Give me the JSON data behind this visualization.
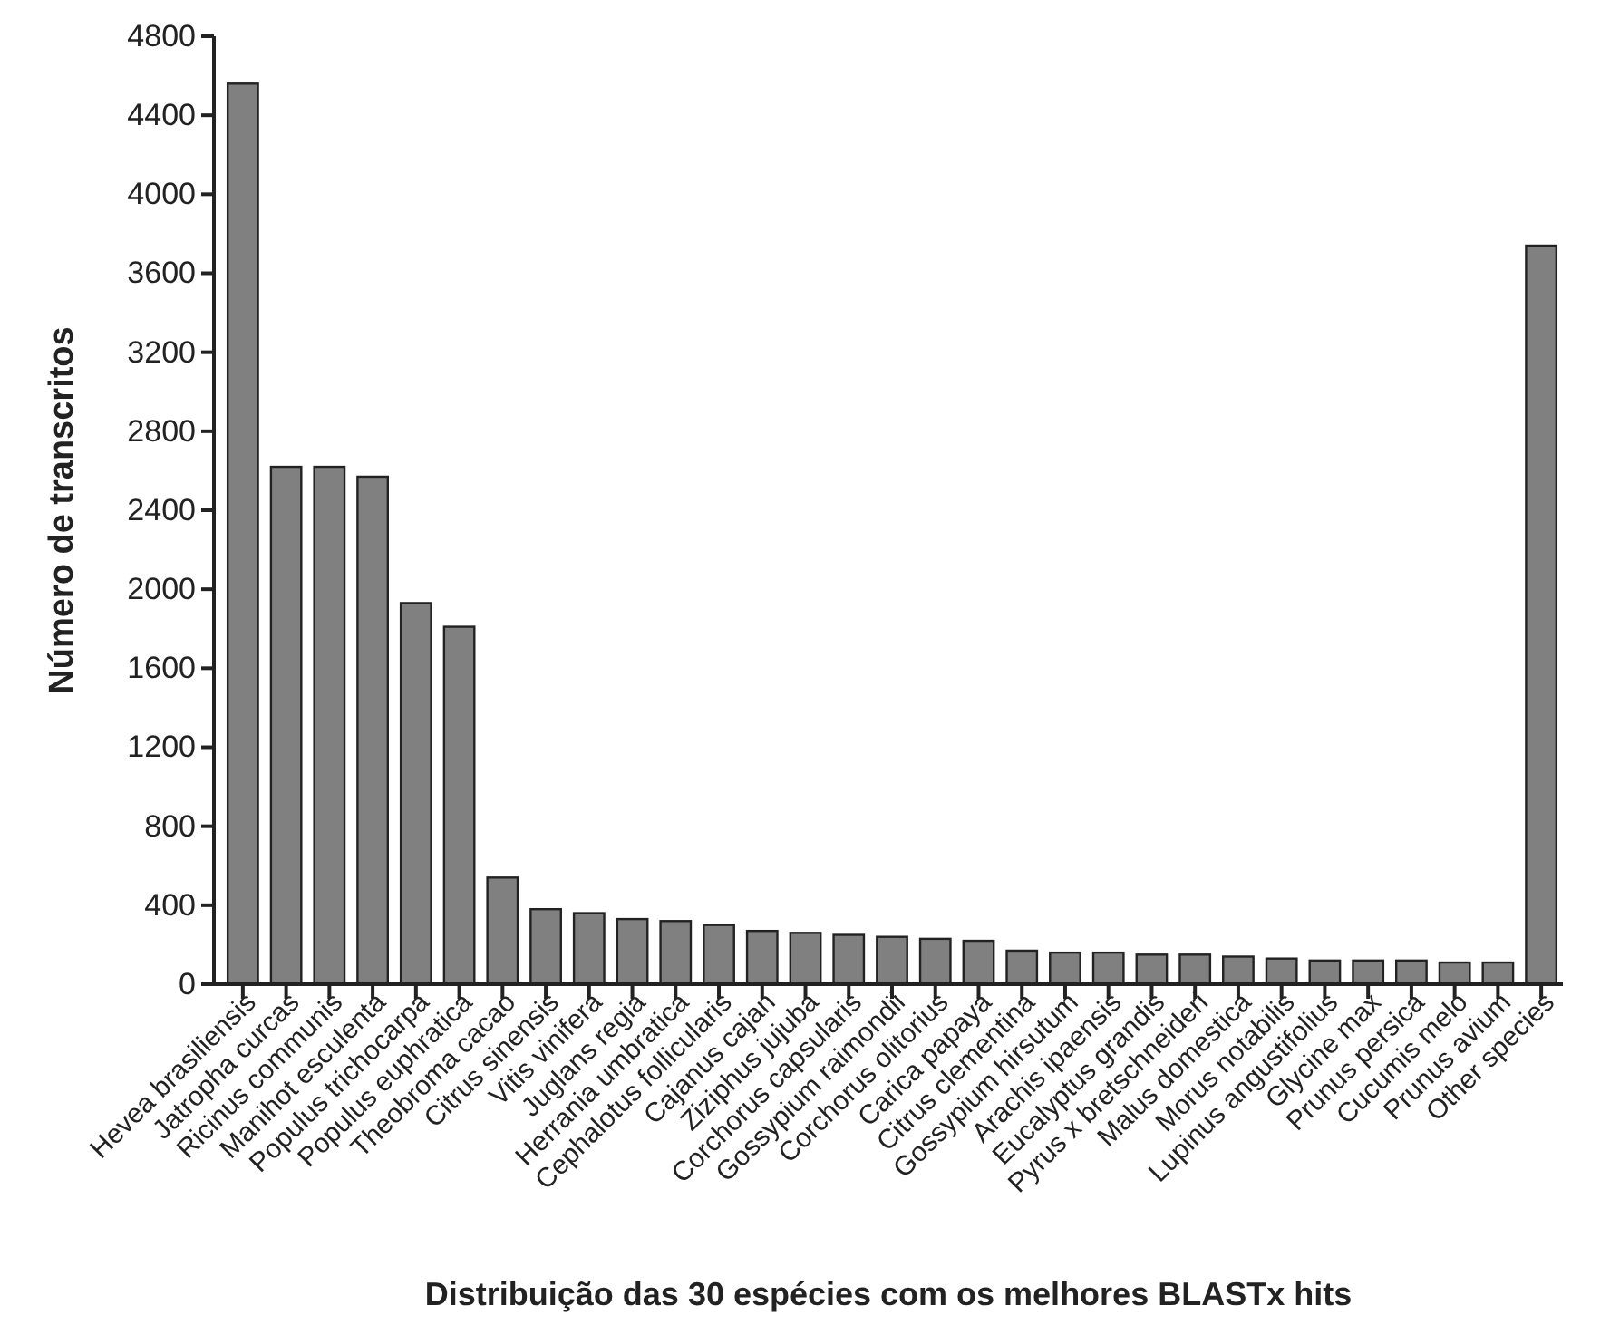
{
  "chart_data": {
    "type": "bar",
    "xlabel": "Distribuição das 30 espécies com os melhores BLASTx hits",
    "ylabel": "Número de transcritos",
    "categories": [
      "Hevea brasiliensis",
      "Jatropha curcas",
      "Ricinus communis",
      "Manihot esculenta",
      "Populus trichocarpa",
      "Populus euphratica",
      "Theobroma cacao",
      "Citrus sinensis",
      "Vitis vinifera",
      "Juglans regia",
      "Herrania umbratica",
      "Cephalotus follicularis",
      "Cajanus cajan",
      "Ziziphus jujuba",
      "Corchorus capsularis",
      "Gossypium raimondii",
      "Corchorus olitorius",
      "Carica papaya",
      "Citrus clementina",
      "Gossypium hirsutum",
      "Arachis ipaensis",
      "Eucalyptus grandis",
      "Pyrus x bretschneideri",
      "Malus domestica",
      "Morus notabilis",
      "Lupinus angustifolius",
      "Glycine max",
      "Prunus persica",
      "Cucumis melo",
      "Prunus avium",
      "Other species"
    ],
    "values": [
      4560,
      2620,
      2620,
      2570,
      1930,
      1810,
      540,
      380,
      360,
      330,
      320,
      300,
      270,
      260,
      250,
      240,
      230,
      220,
      170,
      160,
      160,
      150,
      150,
      140,
      130,
      120,
      120,
      120,
      110,
      110,
      3740
    ],
    "color": "#808080",
    "ylim": [
      0,
      4800
    ],
    "yticks": [
      0,
      400,
      800,
      1200,
      1600,
      2000,
      2400,
      2800,
      3200,
      3600,
      4000,
      4400,
      4800
    ],
    "grid": false
  }
}
